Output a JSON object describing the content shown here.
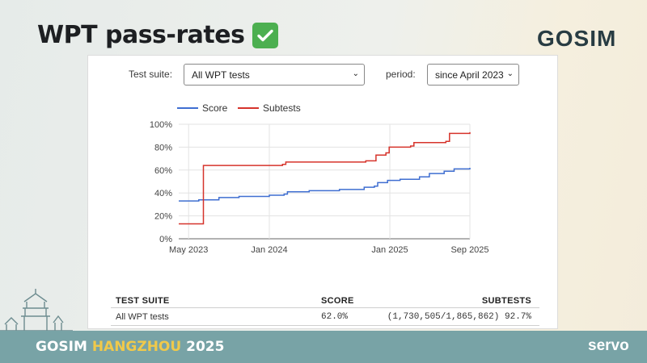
{
  "slide": {
    "title": "WPT pass-rates",
    "logo": "GOSIM",
    "footer_prefix": "GOSIM ",
    "footer_city": "HANGZHOU",
    "footer_year": " 2025",
    "footer_brand": "servo"
  },
  "controls": {
    "suite_label": "Test suite:",
    "suite_value": "All WPT tests",
    "period_label": "period:",
    "period_value": "since April 2023"
  },
  "colors": {
    "score": "#3f6ed1",
    "subtests": "#d6332b",
    "check": "#4caf50",
    "footer": "#78a3a6"
  },
  "chart_data": {
    "type": "line",
    "legend_position": "top",
    "grid": true,
    "x_ticks": [
      "May 2023",
      "Jan 2024",
      "Jan 2025",
      "Sep 2025"
    ],
    "x_tick_dates": [
      "2023-05-01",
      "2024-01-01",
      "2025-01-01",
      "2025-09-01"
    ],
    "xlim": [
      "2023-04-01",
      "2025-09-01"
    ],
    "y_ticks": [
      "0%",
      "20%",
      "40%",
      "60%",
      "80%",
      "100%"
    ],
    "ylim": [
      0,
      100
    ],
    "series": [
      {
        "name": "Score",
        "points": [
          [
            "2023-04-01",
            33
          ],
          [
            "2023-06-01",
            34
          ],
          [
            "2023-08-01",
            36
          ],
          [
            "2023-10-01",
            37
          ],
          [
            "2024-01-01",
            38
          ],
          [
            "2024-02-15",
            39
          ],
          [
            "2024-02-25",
            41
          ],
          [
            "2024-05-01",
            42
          ],
          [
            "2024-08-01",
            43
          ],
          [
            "2024-10-15",
            45
          ],
          [
            "2024-11-15",
            46
          ],
          [
            "2024-11-25",
            49
          ],
          [
            "2024-12-25",
            51
          ],
          [
            "2025-02-01",
            52
          ],
          [
            "2025-04-01",
            54
          ],
          [
            "2025-05-01",
            57
          ],
          [
            "2025-06-15",
            59
          ],
          [
            "2025-07-15",
            61
          ],
          [
            "2025-09-01",
            62
          ]
        ]
      },
      {
        "name": "Subtests",
        "points": [
          [
            "2023-04-01",
            13
          ],
          [
            "2023-06-10",
            13
          ],
          [
            "2023-06-15",
            64
          ],
          [
            "2024-02-10",
            65
          ],
          [
            "2024-02-20",
            67
          ],
          [
            "2024-10-20",
            68
          ],
          [
            "2024-11-10",
            68
          ],
          [
            "2024-11-20",
            73
          ],
          [
            "2024-12-20",
            75
          ],
          [
            "2024-12-30",
            80
          ],
          [
            "2025-03-05",
            81
          ],
          [
            "2025-03-15",
            84
          ],
          [
            "2025-06-20",
            85
          ],
          [
            "2025-07-01",
            92
          ],
          [
            "2025-09-01",
            93
          ]
        ]
      }
    ]
  },
  "table": {
    "headers": [
      "TEST SUITE",
      "SCORE",
      "SUBTESTS"
    ],
    "rows": [
      {
        "suite": "All WPT tests",
        "score": "62.0%",
        "subtests": "(1,730,505/1,865,862) 92.7%"
      }
    ]
  }
}
